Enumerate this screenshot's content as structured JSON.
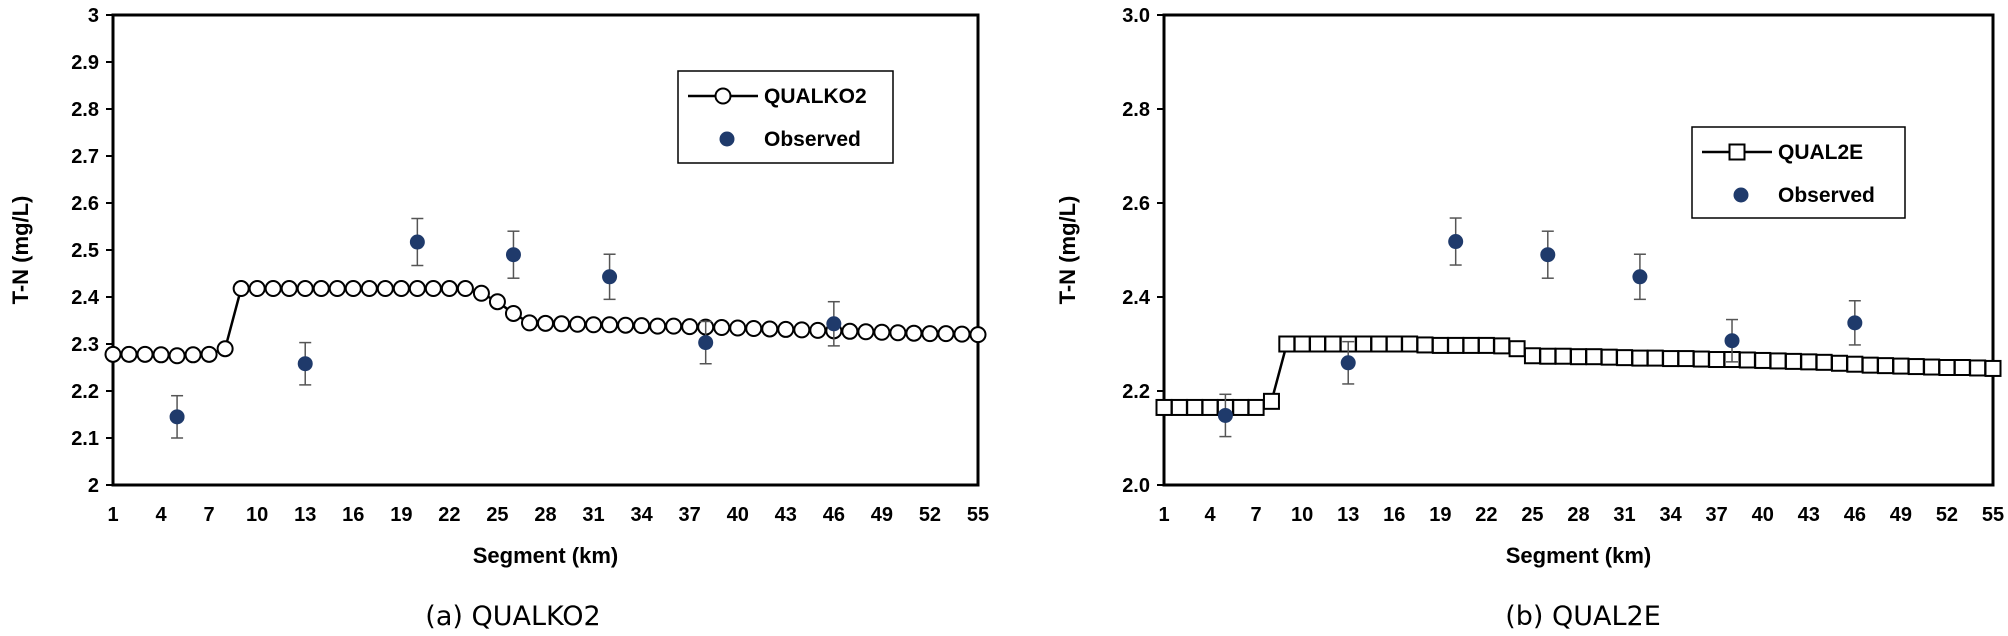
{
  "chart_data": [
    {
      "type": "line",
      "caption": "(a) QUALKO2",
      "xlabel": "Segment (km)",
      "ylabel": "T-N (mg/L)",
      "ylim": [
        2,
        3
      ],
      "yticks": [
        "2",
        "2.1",
        "2.2",
        "2.3",
        "2.4",
        "2.5",
        "2.6",
        "2.7",
        "2.8",
        "2.9",
        "3"
      ],
      "xlim": [
        1,
        55
      ],
      "xticks": [
        "1",
        "4",
        "7",
        "10",
        "13",
        "16",
        "19",
        "22",
        "25",
        "28",
        "31",
        "34",
        "37",
        "40",
        "43",
        "46",
        "49",
        "52",
        "55"
      ],
      "grid": false,
      "legend_position": "top-right",
      "series": [
        {
          "name": "QUALKO2",
          "style": "line-circle",
          "color": "#000000",
          "x": [
            1,
            2,
            3,
            4,
            5,
            6,
            7,
            8,
            9,
            10,
            11,
            12,
            13,
            14,
            15,
            16,
            17,
            18,
            19,
            20,
            21,
            22,
            23,
            24,
            25,
            26,
            27,
            28,
            29,
            30,
            31,
            32,
            33,
            34,
            35,
            36,
            37,
            38,
            39,
            40,
            41,
            42,
            43,
            44,
            45,
            46,
            47,
            48,
            49,
            50,
            51,
            52,
            53,
            54,
            55
          ],
          "y": [
            2.278,
            2.278,
            2.278,
            2.277,
            2.275,
            2.277,
            2.278,
            2.29,
            2.418,
            2.418,
            2.418,
            2.418,
            2.418,
            2.418,
            2.418,
            2.418,
            2.418,
            2.418,
            2.418,
            2.418,
            2.418,
            2.418,
            2.418,
            2.408,
            2.39,
            2.365,
            2.345,
            2.344,
            2.343,
            2.342,
            2.341,
            2.341,
            2.34,
            2.339,
            2.338,
            2.338,
            2.337,
            2.336,
            2.335,
            2.334,
            2.333,
            2.332,
            2.331,
            2.33,
            2.329,
            2.328,
            2.327,
            2.326,
            2.325,
            2.324,
            2.323,
            2.322,
            2.322,
            2.321,
            2.32
          ]
        },
        {
          "name": "Observed",
          "style": "marker-errorbar",
          "color": "#1f3a6b",
          "x": [
            5,
            13,
            20,
            26,
            32,
            38,
            46
          ],
          "y": [
            2.145,
            2.258,
            2.517,
            2.49,
            2.443,
            2.303,
            2.343
          ],
          "error": [
            0.045,
            0.045,
            0.05,
            0.05,
            0.048,
            0.045,
            0.047
          ]
        }
      ]
    },
    {
      "type": "line",
      "caption": "(b) QUAL2E",
      "xlabel": "Segment (km)",
      "ylabel": "T-N (mg/L)",
      "ylim": [
        2.0,
        3.0
      ],
      "yticks": [
        "2.0",
        "2.2",
        "2.4",
        "2.6",
        "2.8",
        "3.0"
      ],
      "xlim": [
        1,
        55
      ],
      "xticks": [
        "1",
        "4",
        "7",
        "10",
        "13",
        "16",
        "19",
        "22",
        "25",
        "28",
        "31",
        "34",
        "37",
        "40",
        "43",
        "46",
        "49",
        "52",
        "55"
      ],
      "grid": false,
      "legend_position": "top-right",
      "series": [
        {
          "name": "QUAL2E",
          "style": "line-square",
          "color": "#000000",
          "x": [
            1,
            2,
            3,
            4,
            5,
            6,
            7,
            8,
            9,
            10,
            11,
            12,
            13,
            14,
            15,
            16,
            17,
            18,
            19,
            20,
            21,
            22,
            23,
            24,
            25,
            26,
            27,
            28,
            29,
            30,
            31,
            32,
            33,
            34,
            35,
            36,
            37,
            38,
            39,
            40,
            41,
            42,
            43,
            44,
            45,
            46,
            47,
            48,
            49,
            50,
            51,
            52,
            53,
            54,
            55
          ],
          "y": [
            2.165,
            2.165,
            2.165,
            2.165,
            2.165,
            2.165,
            2.165,
            2.178,
            2.3,
            2.3,
            2.3,
            2.3,
            2.3,
            2.3,
            2.3,
            2.3,
            2.3,
            2.298,
            2.297,
            2.297,
            2.297,
            2.297,
            2.296,
            2.29,
            2.275,
            2.274,
            2.274,
            2.273,
            2.273,
            2.272,
            2.271,
            2.27,
            2.27,
            2.269,
            2.269,
            2.268,
            2.267,
            2.267,
            2.266,
            2.265,
            2.264,
            2.263,
            2.262,
            2.261,
            2.259,
            2.257,
            2.255,
            2.254,
            2.253,
            2.252,
            2.251,
            2.25,
            2.25,
            2.249,
            2.248
          ]
        },
        {
          "name": "Observed",
          "style": "marker-errorbar",
          "color": "#1f3a6b",
          "x": [
            5,
            13,
            20,
            26,
            32,
            38,
            46
          ],
          "y": [
            2.148,
            2.26,
            2.518,
            2.49,
            2.443,
            2.307,
            2.345
          ],
          "error": [
            0.045,
            0.045,
            0.05,
            0.05,
            0.048,
            0.045,
            0.047
          ]
        }
      ]
    }
  ]
}
